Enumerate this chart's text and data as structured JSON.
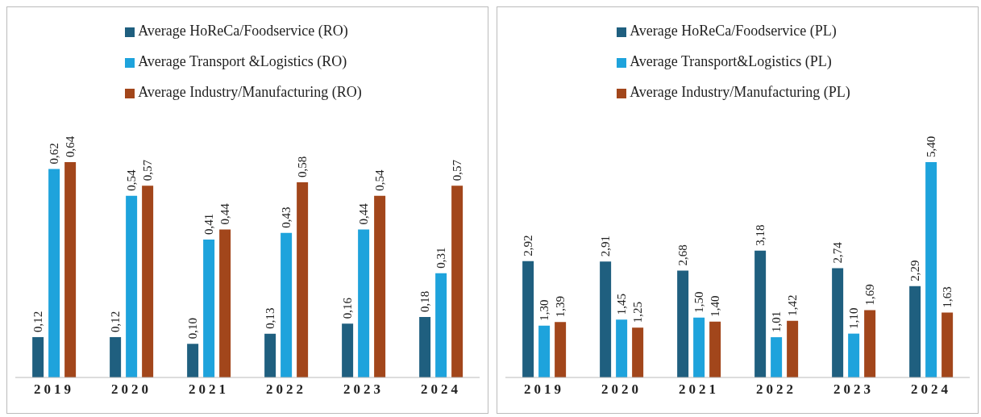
{
  "chart_data": [
    {
      "type": "bar",
      "categories": [
        "2019",
        "2020",
        "2021",
        "2022",
        "2023",
        "2024"
      ],
      "legend": "top",
      "series": [
        {
          "name": "Average HoReCa/Foodservice (RO)",
          "color": "#1f5f7f",
          "values": [
            0.12,
            0.12,
            0.1,
            0.13,
            0.16,
            0.18
          ],
          "value_labels": [
            "0,12",
            "0,12",
            "0,10",
            "0,13",
            "0,16",
            "0,18"
          ]
        },
        {
          "name": "Average Transport &Logistics (RO)",
          "color": "#1ea3dc",
          "values": [
            0.62,
            0.54,
            0.41,
            0.43,
            0.44,
            0.31
          ],
          "value_labels": [
            "0,62",
            "0,54",
            "0,41",
            "0,43",
            "0,44",
            "0,31"
          ]
        },
        {
          "name": "Average Industry/Manufacturing (RO)",
          "color": "#a2461b",
          "values": [
            0.64,
            0.57,
            0.44,
            0.58,
            0.54,
            0.57
          ],
          "value_labels": [
            "0,64",
            "0,57",
            "0,44",
            "0,58",
            "0,54",
            "0,57"
          ]
        }
      ]
    },
    {
      "type": "bar",
      "categories": [
        "2019",
        "2020",
        "2021",
        "2022",
        "2023",
        "2024"
      ],
      "legend": "top",
      "series": [
        {
          "name": "Average HoReCa/Foodservice (PL)",
          "color": "#1f5f7f",
          "values": [
            2.92,
            2.91,
            2.68,
            3.18,
            2.74,
            2.29
          ],
          "value_labels": [
            "2,92",
            "2,91",
            "2,68",
            "3,18",
            "2,74",
            "2,29"
          ]
        },
        {
          "name": "Average Transport&Logistics (PL)",
          "color": "#1ea3dc",
          "values": [
            1.3,
            1.45,
            1.5,
            1.01,
            1.1,
            5.4
          ],
          "value_labels": [
            "1,30",
            "1,45",
            "1,50",
            "1,01",
            "1,10",
            "5,40"
          ]
        },
        {
          "name": "Average Industry/Manufacturing (PL)",
          "color": "#a2461b",
          "values": [
            1.39,
            1.25,
            1.4,
            1.42,
            1.69,
            1.63
          ],
          "value_labels": [
            "1,39",
            "1,25",
            "1,40",
            "1,42",
            "1,69",
            "1,63"
          ]
        }
      ]
    }
  ]
}
